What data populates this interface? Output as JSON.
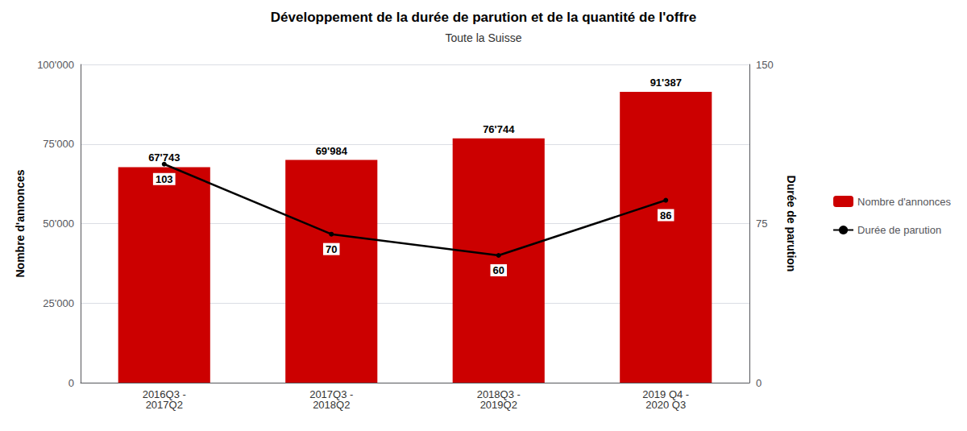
{
  "chart_data": {
    "type": "bar",
    "title": "Développement de la durée de parution et de la quantité de l'offre",
    "subtitle": "Toute la Suisse",
    "categories": [
      "2016Q3 -\n2017Q2",
      "2017Q3 -\n2018Q2",
      "2018Q3 -\n2019Q2",
      "2019 Q4 -\n2020 Q3"
    ],
    "series": [
      {
        "name": "Nombre d'annonces",
        "type": "bar",
        "color": "#cc0000",
        "values": [
          67743,
          69984,
          76744,
          91387
        ],
        "value_labels": [
          "67'743",
          "69'984",
          "76'744",
          "91'387"
        ]
      },
      {
        "name": "Durée de parution",
        "type": "line",
        "color": "#000000",
        "axis": "y2",
        "values": [
          103,
          70,
          60,
          86
        ]
      }
    ],
    "ylabel": "Nombre d'annonces",
    "y2label": "Durée de parution",
    "ylim": [
      0,
      100000
    ],
    "yticks": [
      0,
      {
        "value": 25000,
        "label": "25'000"
      },
      {
        "value": 50000,
        "label": "50'000"
      },
      {
        "value": 75000,
        "label": "75'000"
      },
      {
        "value": 100000,
        "label": "100'000"
      }
    ],
    "y2lim": [
      0,
      150
    ],
    "y2ticks": [
      0,
      75,
      150
    ],
    "grid": true,
    "legend": "right",
    "data_labels": true
  }
}
